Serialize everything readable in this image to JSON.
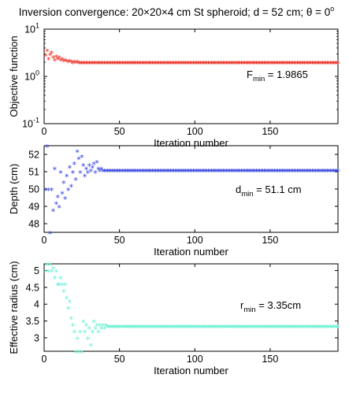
{
  "title": "Inversion convergence: 20×20×4 cm St spheroid; d = 52 cm; θ = 0",
  "title_superscript": "o",
  "marker_glyph": "*",
  "chart_data": [
    {
      "type": "scatter",
      "name": "objective",
      "ylabel": "Objective function",
      "xlabel": "Iteration number",
      "xlim": [
        0,
        195
      ],
      "ylim": [
        0.1,
        10
      ],
      "yscale": "log",
      "grid": false,
      "color": "#e8261a",
      "xticks": [
        0,
        50,
        100,
        150
      ],
      "xtick_labels": [
        "0",
        "50",
        "100",
        "150"
      ],
      "yticks": [
        0.1,
        1,
        10
      ],
      "ytick_base": "10",
      "ytick_exponents": [
        "-1",
        "0",
        "1"
      ],
      "annotation": {
        "main": "F",
        "sub": "min",
        "rest": " = 1.9865"
      },
      "x_first": [
        1,
        2,
        3,
        4,
        5,
        6,
        7,
        8,
        9,
        10,
        11,
        12,
        13,
        14,
        15,
        16,
        17,
        18,
        19,
        20,
        21,
        22,
        23,
        24,
        25,
        26,
        27,
        28,
        29,
        30,
        31,
        32,
        33,
        34,
        35
      ],
      "y_first": [
        2.9,
        3.6,
        2.4,
        3.0,
        3.3,
        2.6,
        2.3,
        2.7,
        2.4,
        2.6,
        2.3,
        2.4,
        2.2,
        2.3,
        2.2,
        2.1,
        2.2,
        2.1,
        2.0,
        2.1,
        2.05,
        2.1,
        2.0,
        2.0,
        2.0,
        2.0,
        2.0,
        1.99,
        1.99,
        1.99,
        1.99,
        1.99,
        1.99,
        1.99,
        1.99
      ],
      "steady_from": 36,
      "steady_to": 195,
      "steady_value": 1.9865
    },
    {
      "type": "scatter",
      "name": "depth",
      "ylabel": "Depth (cm)",
      "xlabel": "Iteration number",
      "xlim": [
        0,
        195
      ],
      "ylim": [
        47.5,
        52.5
      ],
      "grid": false,
      "color": "#2b3bdc",
      "xticks": [
        0,
        50,
        100,
        150
      ],
      "xtick_labels": [
        "0",
        "50",
        "100",
        "150"
      ],
      "yticks": [
        48,
        49,
        50,
        51,
        52
      ],
      "ytick_labels": [
        "48",
        "49",
        "50",
        "51",
        "52"
      ],
      "annotation": {
        "main": "d",
        "sub": "min",
        "rest": " = 51.1 cm"
      },
      "x_first": [
        1,
        2,
        3,
        4,
        5,
        6,
        7,
        8,
        9,
        10,
        11,
        12,
        13,
        14,
        15,
        16,
        17,
        18,
        19,
        20,
        21,
        22,
        23,
        24,
        25,
        26,
        27,
        28,
        29,
        30,
        31,
        32,
        33,
        34,
        35,
        36,
        37,
        38,
        39,
        40
      ],
      "y_first": [
        50.0,
        52.5,
        50.0,
        47.5,
        50.0,
        48.8,
        51.2,
        49.2,
        49.6,
        49.0,
        51.0,
        49.8,
        50.4,
        49.5,
        50.8,
        50.0,
        51.3,
        50.2,
        51.0,
        51.5,
        50.6,
        52.2,
        51.8,
        51.0,
        51.9,
        51.4,
        50.8,
        51.2,
        51.0,
        51.4,
        51.1,
        51.3,
        51.5,
        51.0,
        51.6,
        51.2,
        51.1,
        51.2,
        51.1,
        51.1
      ],
      "steady_from": 41,
      "steady_to": 195,
      "steady_value": 51.1
    },
    {
      "type": "scatter",
      "name": "radius",
      "ylabel": "Effective radius (cm)",
      "xlabel": "Iteration number",
      "xlim": [
        0,
        195
      ],
      "ylim": [
        2.6,
        5.2
      ],
      "grid": false,
      "color": "#5ff0d2",
      "xticks": [
        0,
        50,
        100,
        150
      ],
      "xtick_labels": [
        "0",
        "50",
        "100",
        "150"
      ],
      "yticks": [
        3,
        3.5,
        4,
        4.5,
        5
      ],
      "ytick_labels": [
        "3",
        "3.5",
        "4",
        "4.5",
        "5"
      ],
      "annotation": {
        "main": "r",
        "sub": "min",
        "rest": " = 3.35cm"
      },
      "x_first": [
        1,
        2,
        3,
        4,
        5,
        6,
        7,
        8,
        9,
        10,
        11,
        12,
        13,
        14,
        15,
        16,
        17,
        18,
        19,
        20,
        21,
        22,
        23,
        24,
        25,
        26,
        27,
        28,
        29,
        30,
        31,
        32,
        33,
        34,
        35,
        36,
        37,
        38,
        39,
        40,
        41,
        42
      ],
      "y_first": [
        5.0,
        5.2,
        5.0,
        5.2,
        5.0,
        5.1,
        4.8,
        5.0,
        4.6,
        4.6,
        4.8,
        4.6,
        4.4,
        4.6,
        4.2,
        3.9,
        4.1,
        3.6,
        3.4,
        3.2,
        2.6,
        3.0,
        2.6,
        3.2,
        2.6,
        3.5,
        3.2,
        3.4,
        3.0,
        3.3,
        2.8,
        3.2,
        3.5,
        3.3,
        3.4,
        3.2,
        3.4,
        3.3,
        3.4,
        3.3,
        3.4,
        3.35
      ],
      "steady_from": 43,
      "steady_to": 195,
      "steady_value": 3.35
    }
  ]
}
